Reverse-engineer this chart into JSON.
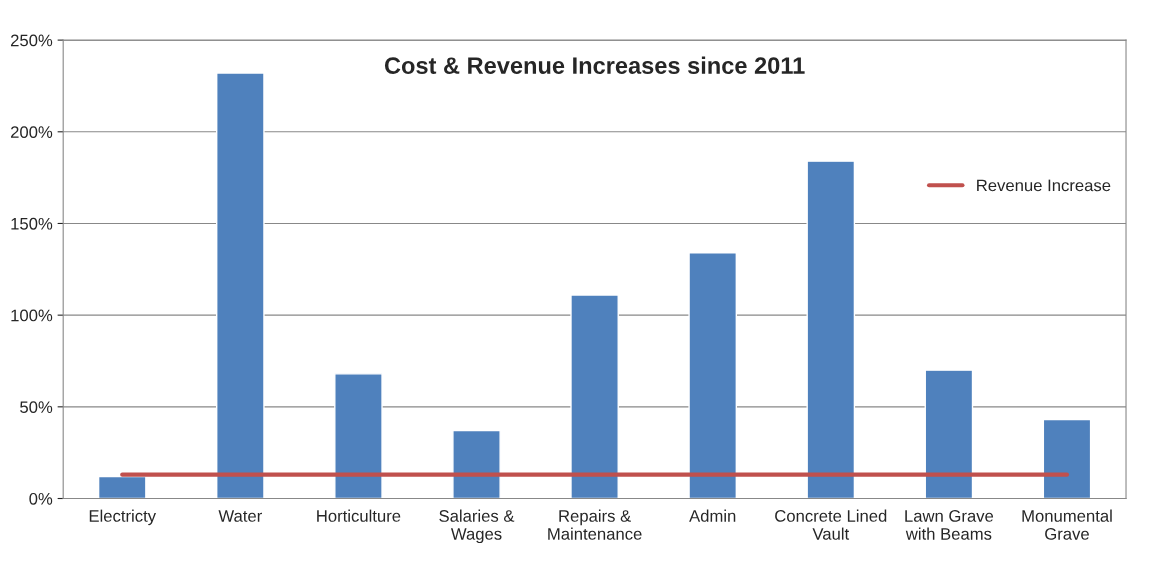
{
  "chart_data": {
    "type": "bar",
    "title": "Cost & Revenue Increases since 2011",
    "categories": [
      "Electricty",
      "Water",
      "Horticulture",
      "Salaries &\nWages",
      "Repairs &\nMaintenance",
      "Admin",
      "Concrete Lined\nVault",
      "Lawn Grave\nwith Beams",
      "Monumental\nGrave"
    ],
    "series": [
      {
        "color": "#4f81bd",
        "values": [
          12,
          232,
          68,
          37,
          111,
          134,
          184,
          70,
          43
        ]
      },
      {
        "type": "line",
        "name": "Revenue Increase",
        "color": "#c0504d",
        "values": [
          13,
          13,
          13,
          13,
          13,
          13,
          13,
          13,
          13
        ]
      }
    ],
    "ylim": [
      0,
      250
    ],
    "yticks": [
      {
        "value": 0,
        "label": "0%"
      },
      {
        "value": 50,
        "label": "50%"
      },
      {
        "value": 100,
        "label": "100%"
      },
      {
        "value": 150,
        "label": "150%"
      },
      {
        "value": 200,
        "label": "200%"
      },
      {
        "value": 250,
        "label": "250%"
      }
    ],
    "grid": "y",
    "legend": "right",
    "marker": "none"
  }
}
